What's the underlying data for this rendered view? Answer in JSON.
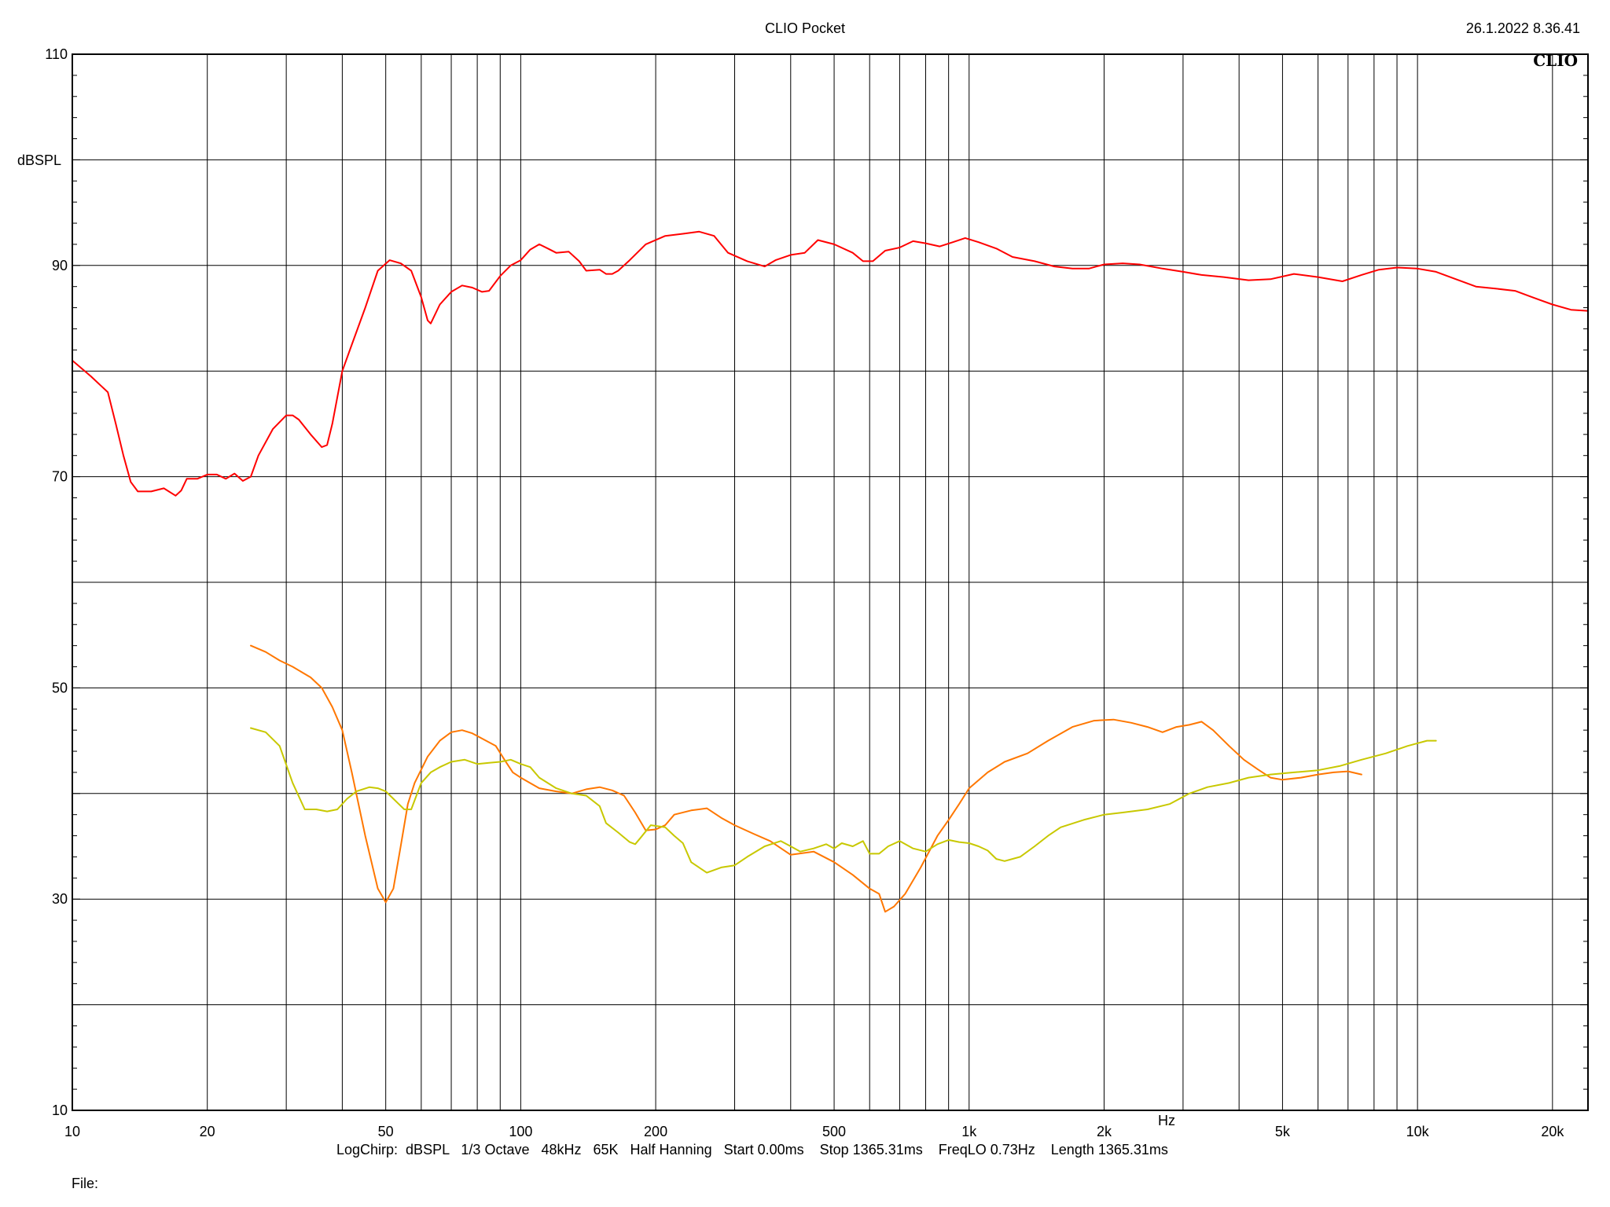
{
  "header": {
    "title": "CLIO Pocket",
    "timestamp": "26.1.2022 8.36.41",
    "logo": "CLIO"
  },
  "footer": {
    "settings": "LogChirp:  dBSPL   1/3 Octave   48kHz   65K   Half Hanning   Start 0.00ms    Stop 1365.31ms    FreqLO 0.73Hz    Length 1365.31ms",
    "file_label": "File:"
  },
  "chart_data": {
    "type": "line",
    "title": "CLIO Pocket",
    "xlabel": "Hz",
    "ylabel": "dBSPL",
    "x_scale": "log",
    "xlim": [
      10,
      24000
    ],
    "ylim": [
      10,
      110
    ],
    "grid": true,
    "x_ticks": [
      {
        "value": 10,
        "label": "10"
      },
      {
        "value": 20,
        "label": "20"
      },
      {
        "value": 50,
        "label": "50"
      },
      {
        "value": 100,
        "label": "100"
      },
      {
        "value": 200,
        "label": "200"
      },
      {
        "value": 500,
        "label": "500"
      },
      {
        "value": 1000,
        "label": "1k"
      },
      {
        "value": 2000,
        "label": "2k"
      },
      {
        "value": 5000,
        "label": "5k"
      },
      {
        "value": 10000,
        "label": "10k"
      },
      {
        "value": 20000,
        "label": "20k"
      }
    ],
    "y_ticks": [
      {
        "value": 110,
        "label": "110"
      },
      {
        "value": 90,
        "label": "90"
      },
      {
        "value": 70,
        "label": "70"
      },
      {
        "value": 50,
        "label": "50"
      },
      {
        "value": 30,
        "label": "30"
      },
      {
        "value": 10,
        "label": "10"
      }
    ],
    "series": [
      {
        "color": "#ff0000",
        "points": [
          [
            10,
            81
          ],
          [
            11,
            79.5
          ],
          [
            12,
            78
          ],
          [
            12.5,
            75
          ],
          [
            13,
            72
          ],
          [
            13.5,
            69.5
          ],
          [
            14,
            68.6
          ],
          [
            15,
            68.6
          ],
          [
            16,
            68.9
          ],
          [
            17,
            68.2
          ],
          [
            17.5,
            68.7
          ],
          [
            18,
            69.8
          ],
          [
            19,
            69.8
          ],
          [
            20,
            70.2
          ],
          [
            21,
            70.2
          ],
          [
            22,
            69.8
          ],
          [
            23,
            70.3
          ],
          [
            24,
            69.6
          ],
          [
            25,
            70
          ],
          [
            26,
            72
          ],
          [
            28,
            74.5
          ],
          [
            30,
            75.8
          ],
          [
            31,
            75.8
          ],
          [
            32,
            75.4
          ],
          [
            34,
            74
          ],
          [
            36,
            72.8
          ],
          [
            37,
            73
          ],
          [
            38,
            75
          ],
          [
            40,
            80
          ],
          [
            42,
            82.5
          ],
          [
            45,
            86
          ],
          [
            48,
            89.5
          ],
          [
            51,
            90.5
          ],
          [
            54,
            90.2
          ],
          [
            57,
            89.5
          ],
          [
            60,
            87
          ],
          [
            62,
            84.8
          ],
          [
            63,
            84.5
          ],
          [
            66,
            86.3
          ],
          [
            70,
            87.5
          ],
          [
            74,
            88.1
          ],
          [
            78,
            87.9
          ],
          [
            82,
            87.5
          ],
          [
            85,
            87.6
          ],
          [
            90,
            89
          ],
          [
            95,
            90
          ],
          [
            100,
            90.5
          ],
          [
            105,
            91.5
          ],
          [
            110,
            92
          ],
          [
            115,
            91.6
          ],
          [
            120,
            91.2
          ],
          [
            128,
            91.3
          ],
          [
            135,
            90.4
          ],
          [
            140,
            89.5
          ],
          [
            150,
            89.6
          ],
          [
            155,
            89.2
          ],
          [
            160,
            89.2
          ],
          [
            165,
            89.5
          ],
          [
            175,
            90.5
          ],
          [
            190,
            92
          ],
          [
            210,
            92.8
          ],
          [
            230,
            93
          ],
          [
            250,
            93.2
          ],
          [
            270,
            92.8
          ],
          [
            290,
            91.2
          ],
          [
            320,
            90.4
          ],
          [
            350,
            89.9
          ],
          [
            370,
            90.5
          ],
          [
            400,
            91
          ],
          [
            430,
            91.2
          ],
          [
            460,
            92.4
          ],
          [
            500,
            92
          ],
          [
            550,
            91.2
          ],
          [
            580,
            90.4
          ],
          [
            610,
            90.4
          ],
          [
            650,
            91.4
          ],
          [
            700,
            91.7
          ],
          [
            750,
            92.3
          ],
          [
            800,
            92.1
          ],
          [
            860,
            91.8
          ],
          [
            920,
            92.2
          ],
          [
            980,
            92.6
          ],
          [
            1050,
            92.2
          ],
          [
            1150,
            91.6
          ],
          [
            1250,
            90.8
          ],
          [
            1400,
            90.4
          ],
          [
            1550,
            89.9
          ],
          [
            1700,
            89.7
          ],
          [
            1850,
            89.7
          ],
          [
            2000,
            90.1
          ],
          [
            2200,
            90.2
          ],
          [
            2400,
            90.1
          ],
          [
            2700,
            89.7
          ],
          [
            3000,
            89.4
          ],
          [
            3300,
            89.1
          ],
          [
            3700,
            88.9
          ],
          [
            4200,
            88.6
          ],
          [
            4700,
            88.7
          ],
          [
            5300,
            89.2
          ],
          [
            6000,
            88.9
          ],
          [
            6800,
            88.5
          ],
          [
            7500,
            89.1
          ],
          [
            8200,
            89.6
          ],
          [
            9000,
            89.8
          ],
          [
            10000,
            89.7
          ],
          [
            11000,
            89.4
          ],
          [
            12000,
            88.8
          ],
          [
            13500,
            88
          ],
          [
            15000,
            87.8
          ],
          [
            16500,
            87.6
          ],
          [
            18000,
            87
          ],
          [
            20000,
            86.3
          ],
          [
            22000,
            85.8
          ],
          [
            24000,
            85.7
          ]
        ]
      },
      {
        "color": "#ff7700",
        "points": [
          [
            25,
            54
          ],
          [
            27,
            53.4
          ],
          [
            29,
            52.6
          ],
          [
            31,
            52
          ],
          [
            34,
            51
          ],
          [
            36,
            50
          ],
          [
            38,
            48.2
          ],
          [
            40,
            46
          ],
          [
            42,
            42
          ],
          [
            45,
            36
          ],
          [
            48,
            31
          ],
          [
            50,
            29.7
          ],
          [
            52,
            31
          ],
          [
            54,
            35
          ],
          [
            56,
            39
          ],
          [
            58,
            41
          ],
          [
            62,
            43.5
          ],
          [
            66,
            45
          ],
          [
            70,
            45.8
          ],
          [
            74,
            46
          ],
          [
            78,
            45.7
          ],
          [
            82,
            45.2
          ],
          [
            88,
            44.5
          ],
          [
            92,
            43.2
          ],
          [
            96,
            42
          ],
          [
            100,
            41.5
          ],
          [
            110,
            40.5
          ],
          [
            120,
            40.2
          ],
          [
            130,
            40
          ],
          [
            140,
            40.4
          ],
          [
            150,
            40.6
          ],
          [
            160,
            40.3
          ],
          [
            170,
            39.8
          ],
          [
            180,
            38.2
          ],
          [
            190,
            36.5
          ],
          [
            200,
            36.6
          ],
          [
            210,
            37
          ],
          [
            220,
            38
          ],
          [
            240,
            38.4
          ],
          [
            260,
            38.6
          ],
          [
            280,
            37.7
          ],
          [
            300,
            37
          ],
          [
            330,
            36.2
          ],
          [
            360,
            35.5
          ],
          [
            400,
            34.2
          ],
          [
            450,
            34.5
          ],
          [
            500,
            33.5
          ],
          [
            550,
            32.3
          ],
          [
            600,
            31
          ],
          [
            630,
            30.5
          ],
          [
            650,
            28.8
          ],
          [
            680,
            29.3
          ],
          [
            720,
            30.5
          ],
          [
            780,
            33
          ],
          [
            850,
            36
          ],
          [
            900,
            37.5
          ],
          [
            950,
            39
          ],
          [
            1000,
            40.5
          ],
          [
            1100,
            42
          ],
          [
            1200,
            43
          ],
          [
            1350,
            43.8
          ],
          [
            1500,
            45
          ],
          [
            1700,
            46.3
          ],
          [
            1900,
            46.9
          ],
          [
            2100,
            47
          ],
          [
            2300,
            46.7
          ],
          [
            2500,
            46.3
          ],
          [
            2700,
            45.8
          ],
          [
            2900,
            46.3
          ],
          [
            3100,
            46.5
          ],
          [
            3300,
            46.8
          ],
          [
            3500,
            46
          ],
          [
            3800,
            44.5
          ],
          [
            4100,
            43.2
          ],
          [
            4400,
            42.3
          ],
          [
            4700,
            41.5
          ],
          [
            5000,
            41.3
          ],
          [
            5500,
            41.5
          ],
          [
            6000,
            41.8
          ],
          [
            6500,
            42
          ],
          [
            7000,
            42.1
          ],
          [
            7500,
            41.8
          ]
        ]
      },
      {
        "color": "#c8c800",
        "points": [
          [
            25,
            46.2
          ],
          [
            27,
            45.8
          ],
          [
            29,
            44.5
          ],
          [
            31,
            41
          ],
          [
            33,
            38.5
          ],
          [
            35,
            38.5
          ],
          [
            37,
            38.3
          ],
          [
            39,
            38.5
          ],
          [
            41,
            39.5
          ],
          [
            43,
            40.2
          ],
          [
            46,
            40.6
          ],
          [
            48,
            40.5
          ],
          [
            50,
            40.2
          ],
          [
            52,
            39.5
          ],
          [
            55,
            38.5
          ],
          [
            57,
            38.5
          ],
          [
            60,
            41
          ],
          [
            63,
            42
          ],
          [
            66,
            42.5
          ],
          [
            70,
            43
          ],
          [
            75,
            43.2
          ],
          [
            80,
            42.8
          ],
          [
            85,
            42.9
          ],
          [
            90,
            43
          ],
          [
            95,
            43.2
          ],
          [
            100,
            42.8
          ],
          [
            105,
            42.5
          ],
          [
            110,
            41.5
          ],
          [
            120,
            40.5
          ],
          [
            130,
            40
          ],
          [
            140,
            39.8
          ],
          [
            150,
            38.8
          ],
          [
            155,
            37.2
          ],
          [
            165,
            36.3
          ],
          [
            175,
            35.4
          ],
          [
            180,
            35.2
          ],
          [
            185,
            35.8
          ],
          [
            195,
            37
          ],
          [
            210,
            36.8
          ],
          [
            220,
            36
          ],
          [
            230,
            35.3
          ],
          [
            240,
            33.5
          ],
          [
            260,
            32.5
          ],
          [
            280,
            33
          ],
          [
            300,
            33.2
          ],
          [
            320,
            34
          ],
          [
            350,
            35
          ],
          [
            380,
            35.5
          ],
          [
            400,
            35
          ],
          [
            420,
            34.5
          ],
          [
            450,
            34.8
          ],
          [
            480,
            35.2
          ],
          [
            500,
            34.8
          ],
          [
            520,
            35.3
          ],
          [
            550,
            35
          ],
          [
            580,
            35.5
          ],
          [
            600,
            34.3
          ],
          [
            630,
            34.3
          ],
          [
            660,
            35
          ],
          [
            700,
            35.5
          ],
          [
            750,
            34.8
          ],
          [
            800,
            34.5
          ],
          [
            850,
            35.2
          ],
          [
            900,
            35.6
          ],
          [
            950,
            35.4
          ],
          [
            1000,
            35.3
          ],
          [
            1050,
            35
          ],
          [
            1100,
            34.6
          ],
          [
            1150,
            33.8
          ],
          [
            1200,
            33.6
          ],
          [
            1300,
            34
          ],
          [
            1400,
            35
          ],
          [
            1500,
            36
          ],
          [
            1600,
            36.8
          ],
          [
            1800,
            37.5
          ],
          [
            2000,
            38
          ],
          [
            2200,
            38.2
          ],
          [
            2500,
            38.5
          ],
          [
            2800,
            39
          ],
          [
            3100,
            40
          ],
          [
            3400,
            40.6
          ],
          [
            3800,
            41
          ],
          [
            4200,
            41.5
          ],
          [
            4700,
            41.8
          ],
          [
            5300,
            42
          ],
          [
            6000,
            42.2
          ],
          [
            6700,
            42.6
          ],
          [
            7500,
            43.2
          ],
          [
            8500,
            43.8
          ],
          [
            9500,
            44.5
          ],
          [
            10500,
            45
          ],
          [
            11000,
            45
          ]
        ]
      }
    ]
  }
}
